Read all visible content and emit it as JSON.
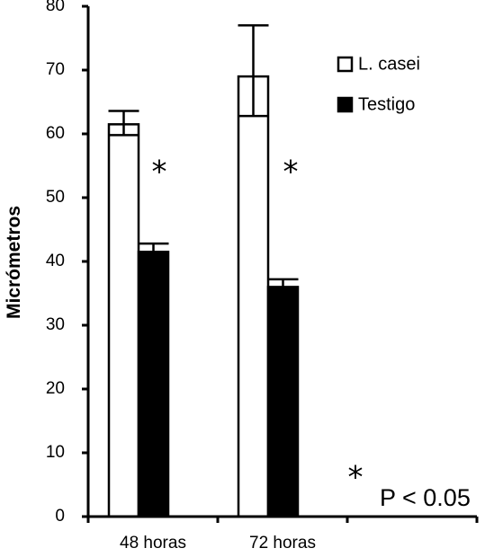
{
  "chart_data": {
    "type": "bar",
    "categories": [
      "48 horas",
      "72 horas",
      ""
    ],
    "series": [
      {
        "name": "L. casei",
        "color": "#ffffff",
        "values": [
          61.5,
          69,
          null
        ],
        "err_low": [
          59.8,
          62.8,
          null
        ],
        "err_high": [
          63.6,
          77,
          null
        ]
      },
      {
        "name": "Testigo",
        "color": "#000000",
        "values": [
          41.5,
          36,
          null
        ],
        "err_low": [
          41.5,
          36,
          null
        ],
        "err_high": [
          42.8,
          37.2,
          null
        ]
      }
    ],
    "ylabel": "Micrómetros",
    "ylim": [
      0,
      80
    ],
    "yticks": [
      "0",
      "10",
      "20",
      "30",
      "40",
      "50",
      "60",
      "70",
      "80"
    ],
    "significance_marks": [
      "*",
      "*"
    ],
    "note_star": "*",
    "note_text": "P < 0.05",
    "legend_position": "top-right",
    "grid": false
  }
}
